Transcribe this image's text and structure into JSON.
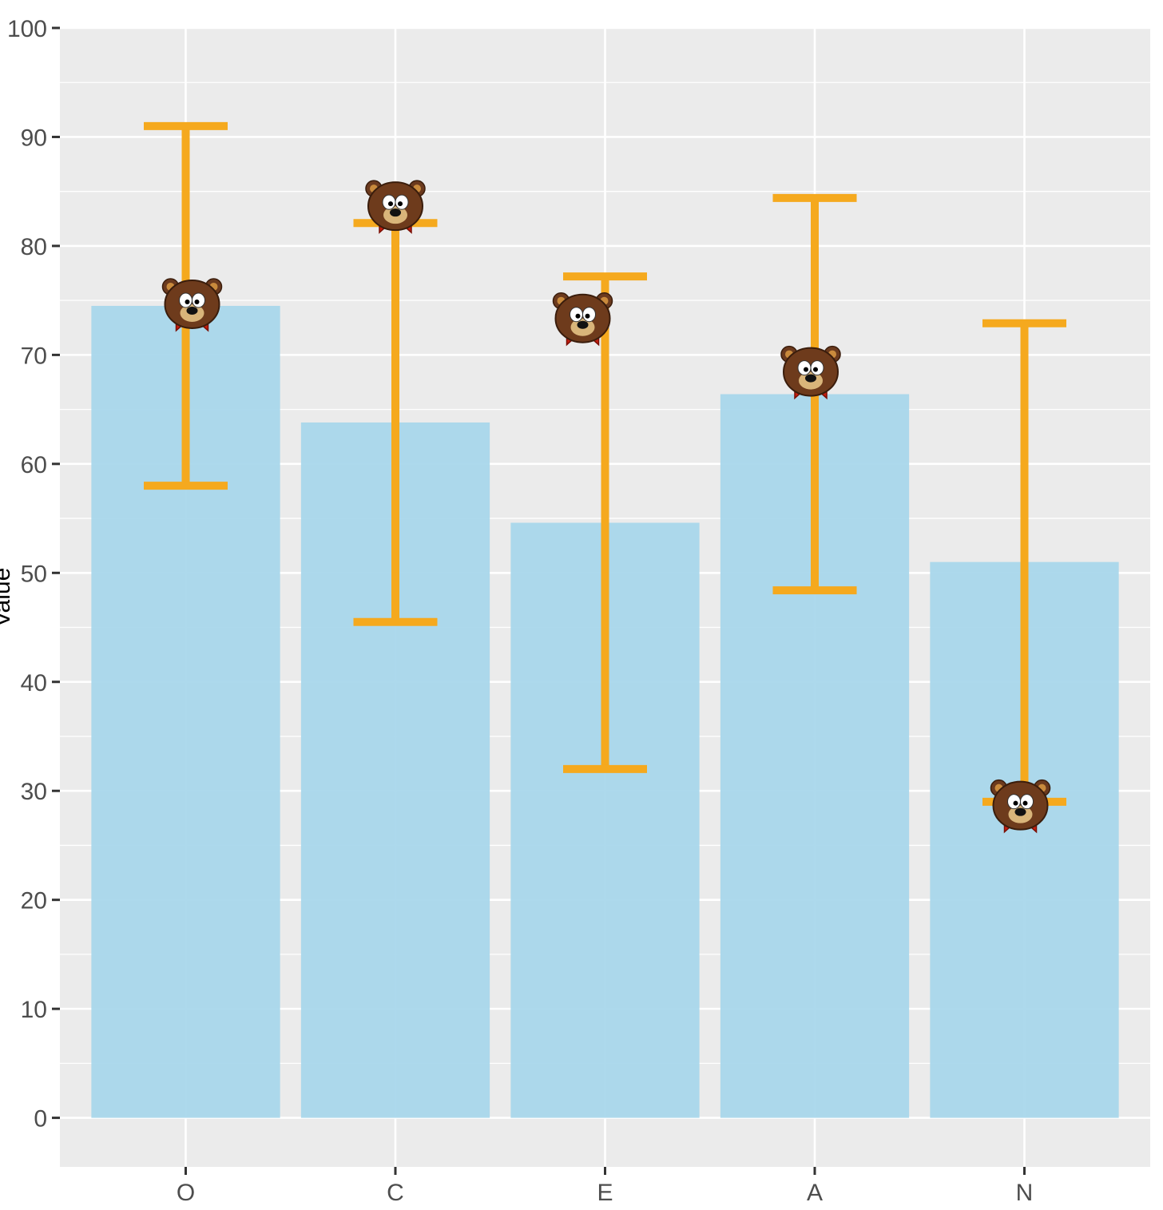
{
  "chart_data": {
    "type": "bar",
    "categories": [
      "O",
      "C",
      "E",
      "A",
      "N"
    ],
    "values": [
      74.5,
      63.8,
      54.6,
      66.4,
      51
    ],
    "error_bars": {
      "lower": [
        58,
        45.5,
        32,
        48.4,
        29
      ],
      "upper": [
        91,
        82.1,
        77.2,
        84.4,
        72.9
      ]
    },
    "markers": {
      "icon": "bear-face-icon",
      "values": [
        74.5,
        83.5,
        73.2,
        68.3,
        28.5
      ]
    },
    "ylabel": "Value",
    "ylim": [
      -4.5,
      100
    ],
    "yticks": [
      0,
      10,
      20,
      30,
      40,
      50,
      60,
      70,
      80,
      90,
      100
    ],
    "grid": true,
    "colors": {
      "panel": "#ebebeb",
      "grid": "#ffffff",
      "bar": "#a6d6ea",
      "errorbar": "#f5a91e",
      "tick_text": "#4d4d4d"
    }
  }
}
